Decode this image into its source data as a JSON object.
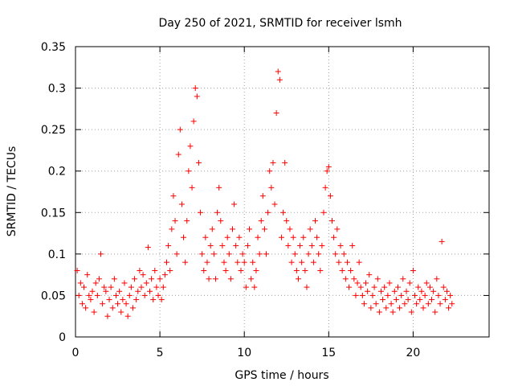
{
  "chart_data": {
    "type": "scatter",
    "title": "Day 250 of 2021, SRMTID for receiver lsmh",
    "xlabel": "GPS time / hours",
    "ylabel": "SRMTID / TECUs",
    "xlim": [
      0,
      24.5
    ],
    "ylim": [
      0,
      0.35
    ],
    "xticks": [
      0,
      5,
      10,
      15,
      20
    ],
    "xtick_labels": [
      "0",
      "5",
      "10",
      "15",
      "20"
    ],
    "yticks": [
      0,
      0.05,
      0.1,
      0.15,
      0.2,
      0.25,
      0.3,
      0.35
    ],
    "ytick_labels": [
      "0",
      "0.05",
      "0.1",
      "0.15",
      "0.2",
      "0.25",
      "0.3",
      "0.35"
    ],
    "grid": true,
    "marker": "plus",
    "color": "#ff0000",
    "series": [
      {
        "name": "SRMTID",
        "points": [
          [
            0.1,
            0.08
          ],
          [
            0.2,
            0.05
          ],
          [
            0.3,
            0.065
          ],
          [
            0.4,
            0.04
          ],
          [
            0.5,
            0.06
          ],
          [
            0.6,
            0.035
          ],
          [
            0.7,
            0.075
          ],
          [
            0.8,
            0.05
          ],
          [
            0.9,
            0.045
          ],
          [
            1.0,
            0.055
          ],
          [
            1.1,
            0.03
          ],
          [
            1.2,
            0.065
          ],
          [
            1.3,
            0.05
          ],
          [
            1.4,
            0.07
          ],
          [
            1.5,
            0.1
          ],
          [
            1.6,
            0.04
          ],
          [
            1.7,
            0.06
          ],
          [
            1.8,
            0.055
          ],
          [
            1.9,
            0.025
          ],
          [
            2.0,
            0.045
          ],
          [
            2.1,
            0.06
          ],
          [
            2.2,
            0.035
          ],
          [
            2.3,
            0.07
          ],
          [
            2.4,
            0.05
          ],
          [
            2.5,
            0.04
          ],
          [
            2.6,
            0.055
          ],
          [
            2.7,
            0.03
          ],
          [
            2.8,
            0.045
          ],
          [
            2.9,
            0.065
          ],
          [
            3.0,
            0.04
          ],
          [
            3.1,
            0.025
          ],
          [
            3.2,
            0.05
          ],
          [
            3.3,
            0.06
          ],
          [
            3.4,
            0.035
          ],
          [
            3.5,
            0.07
          ],
          [
            3.6,
            0.045
          ],
          [
            3.7,
            0.055
          ],
          [
            3.8,
            0.08
          ],
          [
            3.9,
            0.06
          ],
          [
            4.0,
            0.075
          ],
          [
            4.1,
            0.05
          ],
          [
            4.2,
            0.065
          ],
          [
            4.3,
            0.108
          ],
          [
            4.4,
            0.055
          ],
          [
            4.5,
            0.07
          ],
          [
            4.6,
            0.045
          ],
          [
            4.7,
            0.08
          ],
          [
            4.8,
            0.06
          ],
          [
            4.9,
            0.05
          ],
          [
            5.0,
            0.07
          ],
          [
            5.1,
            0.045
          ],
          [
            5.2,
            0.06
          ],
          [
            5.3,
            0.075
          ],
          [
            5.4,
            0.09
          ],
          [
            5.5,
            0.11
          ],
          [
            5.6,
            0.08
          ],
          [
            5.7,
            0.13
          ],
          [
            5.8,
            0.17
          ],
          [
            5.9,
            0.14
          ],
          [
            6.0,
            0.1
          ],
          [
            6.1,
            0.22
          ],
          [
            6.2,
            0.25
          ],
          [
            6.3,
            0.16
          ],
          [
            6.4,
            0.12
          ],
          [
            6.5,
            0.09
          ],
          [
            6.6,
            0.14
          ],
          [
            6.7,
            0.2
          ],
          [
            6.8,
            0.23
          ],
          [
            6.9,
            0.18
          ],
          [
            7.0,
            0.26
          ],
          [
            7.1,
            0.3
          ],
          [
            7.2,
            0.29
          ],
          [
            7.3,
            0.21
          ],
          [
            7.4,
            0.15
          ],
          [
            7.5,
            0.1
          ],
          [
            7.6,
            0.08
          ],
          [
            7.7,
            0.12
          ],
          [
            7.8,
            0.09
          ],
          [
            7.9,
            0.07
          ],
          [
            8.0,
            0.11
          ],
          [
            8.1,
            0.13
          ],
          [
            8.2,
            0.1
          ],
          [
            8.3,
            0.07
          ],
          [
            8.4,
            0.15
          ],
          [
            8.5,
            0.18
          ],
          [
            8.6,
            0.14
          ],
          [
            8.7,
            0.11
          ],
          [
            8.8,
            0.09
          ],
          [
            8.9,
            0.08
          ],
          [
            9.0,
            0.12
          ],
          [
            9.1,
            0.1
          ],
          [
            9.2,
            0.07
          ],
          [
            9.3,
            0.13
          ],
          [
            9.4,
            0.16
          ],
          [
            9.5,
            0.11
          ],
          [
            9.6,
            0.09
          ],
          [
            9.7,
            0.12
          ],
          [
            9.8,
            0.08
          ],
          [
            9.9,
            0.1
          ],
          [
            10.0,
            0.09
          ],
          [
            10.1,
            0.06
          ],
          [
            10.2,
            0.11
          ],
          [
            10.3,
            0.13
          ],
          [
            10.4,
            0.07
          ],
          [
            10.5,
            0.09
          ],
          [
            10.6,
            0.06
          ],
          [
            10.7,
            0.08
          ],
          [
            10.8,
            0.12
          ],
          [
            10.9,
            0.1
          ],
          [
            11.0,
            0.14
          ],
          [
            11.1,
            0.17
          ],
          [
            11.2,
            0.13
          ],
          [
            11.3,
            0.1
          ],
          [
            11.4,
            0.15
          ],
          [
            11.5,
            0.2
          ],
          [
            11.6,
            0.18
          ],
          [
            11.7,
            0.21
          ],
          [
            11.8,
            0.16
          ],
          [
            11.9,
            0.27
          ],
          [
            12.0,
            0.32
          ],
          [
            12.1,
            0.31
          ],
          [
            12.2,
            0.12
          ],
          [
            12.3,
            0.15
          ],
          [
            12.4,
            0.21
          ],
          [
            12.5,
            0.14
          ],
          [
            12.6,
            0.11
          ],
          [
            12.7,
            0.13
          ],
          [
            12.8,
            0.09
          ],
          [
            12.9,
            0.12
          ],
          [
            13.0,
            0.1
          ],
          [
            13.1,
            0.08
          ],
          [
            13.2,
            0.07
          ],
          [
            13.3,
            0.11
          ],
          [
            13.4,
            0.09
          ],
          [
            13.5,
            0.12
          ],
          [
            13.6,
            0.08
          ],
          [
            13.7,
            0.06
          ],
          [
            13.8,
            0.1
          ],
          [
            13.9,
            0.13
          ],
          [
            14.0,
            0.11
          ],
          [
            14.1,
            0.09
          ],
          [
            14.2,
            0.14
          ],
          [
            14.3,
            0.12
          ],
          [
            14.4,
            0.1
          ],
          [
            14.5,
            0.08
          ],
          [
            14.6,
            0.11
          ],
          [
            14.7,
            0.15
          ],
          [
            14.8,
            0.18
          ],
          [
            14.9,
            0.2
          ],
          [
            15.0,
            0.205
          ],
          [
            15.1,
            0.17
          ],
          [
            15.2,
            0.14
          ],
          [
            15.3,
            0.12
          ],
          [
            15.4,
            0.1
          ],
          [
            15.5,
            0.13
          ],
          [
            15.6,
            0.09
          ],
          [
            15.7,
            0.11
          ],
          [
            15.8,
            0.08
          ],
          [
            15.9,
            0.1
          ],
          [
            16.0,
            0.07
          ],
          [
            16.1,
            0.09
          ],
          [
            16.2,
            0.06
          ],
          [
            16.3,
            0.08
          ],
          [
            16.4,
            0.11
          ],
          [
            16.5,
            0.07
          ],
          [
            16.6,
            0.05
          ],
          [
            16.7,
            0.065
          ],
          [
            16.8,
            0.09
          ],
          [
            16.9,
            0.06
          ],
          [
            17.0,
            0.05
          ],
          [
            17.1,
            0.04
          ],
          [
            17.2,
            0.065
          ],
          [
            17.3,
            0.055
          ],
          [
            17.4,
            0.075
          ],
          [
            17.5,
            0.035
          ],
          [
            17.6,
            0.05
          ],
          [
            17.7,
            0.06
          ],
          [
            17.8,
            0.04
          ],
          [
            17.9,
            0.07
          ],
          [
            18.0,
            0.03
          ],
          [
            18.1,
            0.055
          ],
          [
            18.2,
            0.045
          ],
          [
            18.3,
            0.06
          ],
          [
            18.4,
            0.035
          ],
          [
            18.5,
            0.05
          ],
          [
            18.6,
            0.065
          ],
          [
            18.7,
            0.04
          ],
          [
            18.8,
            0.03
          ],
          [
            18.9,
            0.055
          ],
          [
            19.0,
            0.045
          ],
          [
            19.1,
            0.06
          ],
          [
            19.2,
            0.035
          ],
          [
            19.3,
            0.05
          ],
          [
            19.4,
            0.07
          ],
          [
            19.5,
            0.04
          ],
          [
            19.6,
            0.055
          ],
          [
            19.7,
            0.045
          ],
          [
            19.8,
            0.065
          ],
          [
            19.9,
            0.03
          ],
          [
            20.0,
            0.08
          ],
          [
            20.1,
            0.05
          ],
          [
            20.2,
            0.04
          ],
          [
            20.3,
            0.06
          ],
          [
            20.4,
            0.045
          ],
          [
            20.5,
            0.055
          ],
          [
            20.6,
            0.035
          ],
          [
            20.7,
            0.05
          ],
          [
            20.8,
            0.065
          ],
          [
            20.9,
            0.04
          ],
          [
            21.0,
            0.06
          ],
          [
            21.1,
            0.045
          ],
          [
            21.2,
            0.055
          ],
          [
            21.3,
            0.03
          ],
          [
            21.4,
            0.07
          ],
          [
            21.5,
            0.05
          ],
          [
            21.6,
            0.04
          ],
          [
            21.7,
            0.115
          ],
          [
            21.8,
            0.06
          ],
          [
            21.9,
            0.045
          ],
          [
            22.0,
            0.055
          ],
          [
            22.1,
            0.035
          ],
          [
            22.2,
            0.05
          ],
          [
            22.3,
            0.04
          ]
        ]
      }
    ]
  }
}
